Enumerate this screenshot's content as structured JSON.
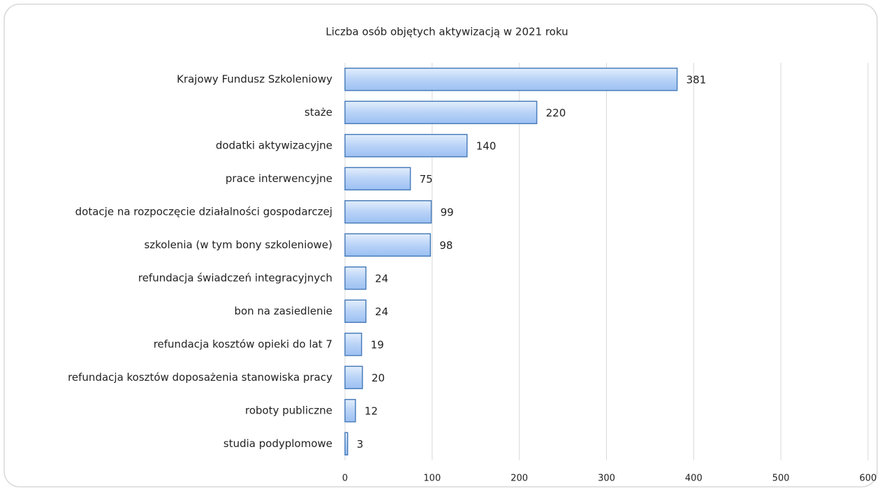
{
  "chart_data": {
    "type": "bar",
    "orientation": "horizontal",
    "title": "Liczba osób objętych aktywizacją w 2021 roku",
    "categories": [
      "Krajowy Fundusz Szkoleniowy",
      "staże",
      "dodatki aktywizacyjne",
      "prace interwencyjne",
      "dotacje na rozpoczęcie działalności gospodarczej",
      "szkolenia (w tym bony szkoleniowe)",
      "refundacja świadczeń integracyjnych",
      "bon na zasiedlenie",
      "refundacja kosztów opieki do lat 7",
      "refundacja kosztów doposażenia stanowiska pracy",
      "roboty publiczne",
      "studia podyplomowe"
    ],
    "values": [
      381,
      220,
      140,
      75,
      99,
      98,
      24,
      24,
      19,
      20,
      12,
      3
    ],
    "color": "#4a7ebb",
    "xlim": [
      0,
      600
    ],
    "xticks": [
      0,
      100,
      200,
      300,
      400,
      500,
      600
    ],
    "grid": true
  }
}
